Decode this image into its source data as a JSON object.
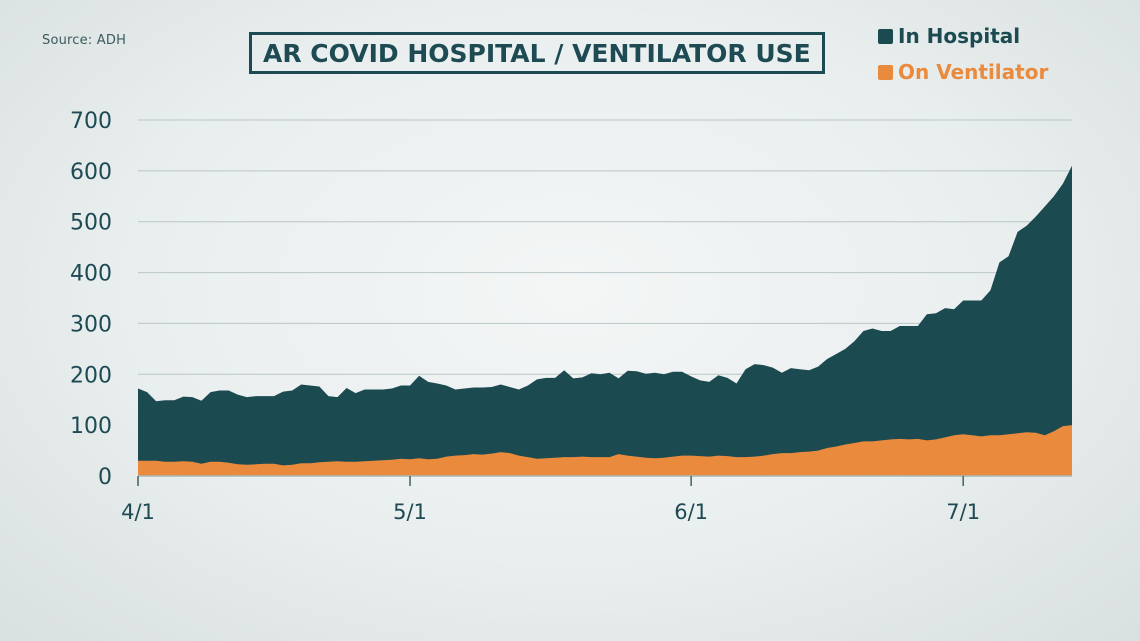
{
  "source": "Source: ADH",
  "chart_data": {
    "type": "area",
    "title": "AR COVID HOSPITAL / VENTILATOR USE",
    "xlabel": "",
    "ylabel": "",
    "ylim": [
      0,
      700
    ],
    "y_ticks": [
      0,
      100,
      200,
      300,
      400,
      500,
      600,
      700
    ],
    "x_ticks": [
      {
        "label": "4/1",
        "day": 0
      },
      {
        "label": "5/1",
        "day": 30
      },
      {
        "label": "6/1",
        "day": 61
      },
      {
        "label": "7/1",
        "day": 91
      }
    ],
    "grid": true,
    "legend_position": "top-right",
    "series": [
      {
        "name": "In Hospital",
        "color": "#1c4a51",
        "values": [
          172,
          165,
          147,
          149,
          149,
          156,
          155,
          148,
          165,
          168,
          168,
          160,
          155,
          157,
          157,
          157,
          166,
          168,
          180,
          178,
          176,
          157,
          155,
          173,
          163,
          170,
          170,
          170,
          172,
          178,
          178,
          197,
          185,
          182,
          178,
          170,
          172,
          174,
          174,
          175,
          180,
          175,
          170,
          178,
          190,
          193,
          193,
          208,
          192,
          194,
          202,
          200,
          203,
          192,
          207,
          206,
          201,
          203,
          200,
          205,
          205,
          196,
          188,
          185,
          198,
          193,
          182,
          210,
          220,
          218,
          213,
          203,
          212,
          210,
          208,
          215,
          230,
          240,
          250,
          265,
          285,
          290,
          285,
          285,
          295,
          295,
          295,
          318,
          320,
          330,
          328,
          345,
          345,
          345,
          365,
          420,
          432,
          480,
          492,
          510,
          530,
          550,
          575,
          610
        ]
      },
      {
        "name": "On Ventilator",
        "color": "#ea8a3c",
        "values": [
          30,
          30,
          30,
          28,
          28,
          29,
          28,
          24,
          28,
          28,
          26,
          23,
          22,
          23,
          24,
          24,
          21,
          22,
          25,
          25,
          27,
          28,
          29,
          28,
          28,
          29,
          30,
          31,
          32,
          34,
          33,
          35,
          33,
          34,
          38,
          40,
          41,
          43,
          42,
          44,
          47,
          45,
          40,
          37,
          34,
          35,
          36,
          37,
          37,
          38,
          37,
          37,
          37,
          43,
          40,
          38,
          36,
          35,
          36,
          38,
          40,
          40,
          39,
          38,
          40,
          39,
          37,
          37,
          38,
          40,
          43,
          45,
          45,
          47,
          48,
          50,
          55,
          58,
          62,
          65,
          68,
          68,
          70,
          72,
          73,
          72,
          73,
          70,
          72,
          76,
          80,
          82,
          80,
          78,
          80,
          80,
          82,
          84,
          86,
          85,
          80,
          88,
          98,
          100
        ]
      }
    ]
  }
}
